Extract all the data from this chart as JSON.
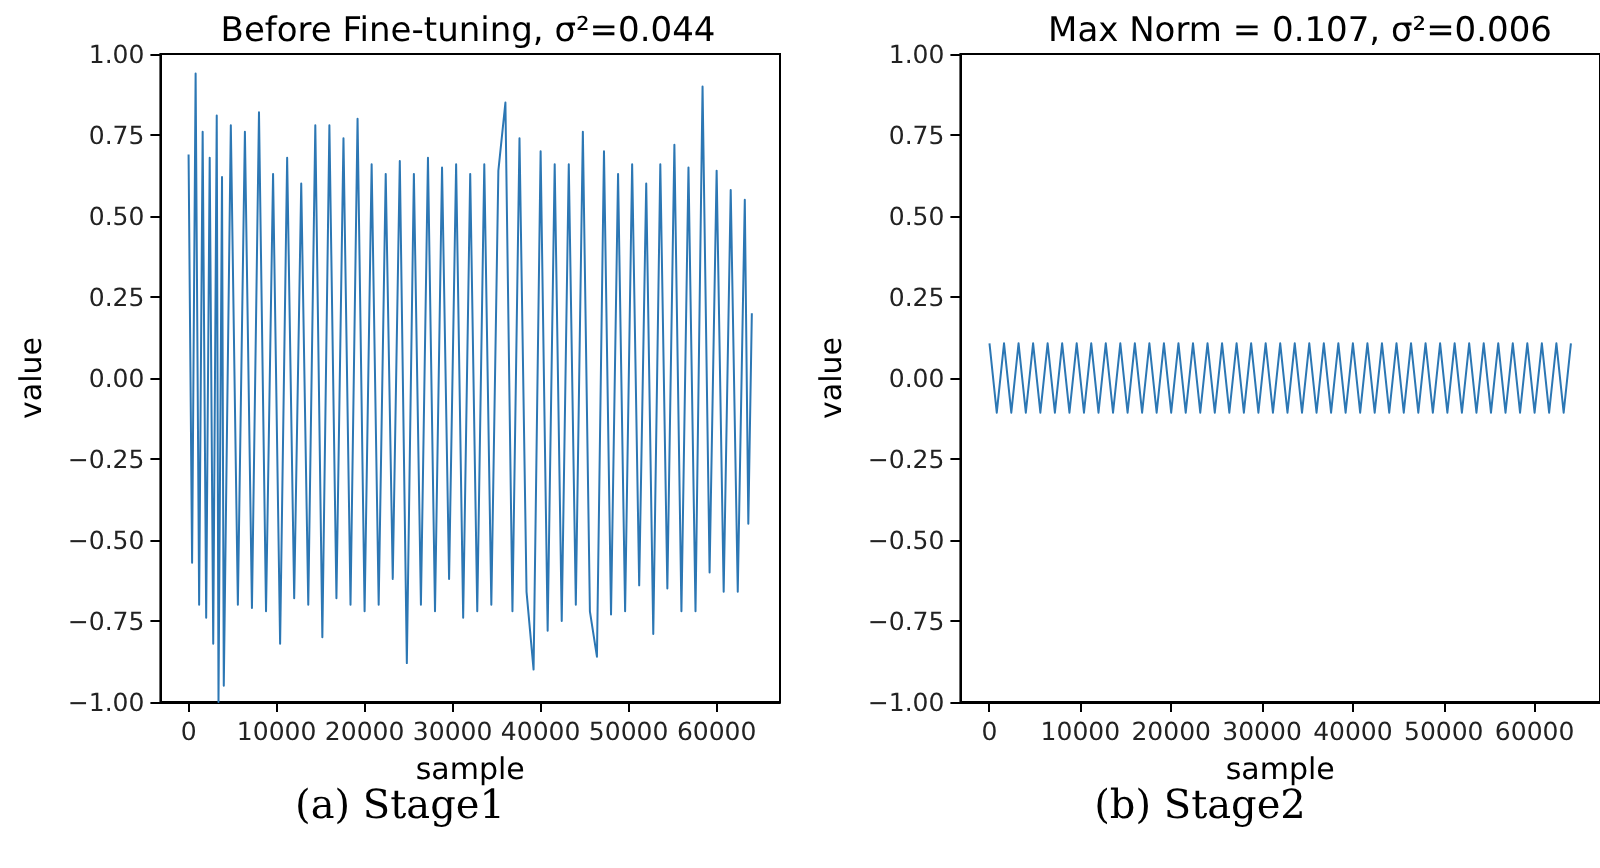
{
  "chart_data": [
    {
      "type": "line",
      "title": "Before Fine-tuning, σ²=0.044",
      "xlabel": "sample",
      "ylabel": "value",
      "annotations": [
        "(a) Stage1"
      ],
      "marker": "none",
      "line_style": "solid",
      "xlim": [
        -3200,
        67200
      ],
      "xticks": [
        0,
        10000,
        20000,
        30000,
        40000,
        50000,
        60000
      ],
      "ylim": [
        -1,
        1
      ],
      "yticks": [
        {
          "value": -1,
          "label": "−1.00"
        },
        {
          "value": -0.75,
          "label": "−0.75"
        },
        {
          "value": -0.5,
          "label": "−0.50"
        },
        {
          "value": -0.25,
          "label": "−0.25"
        },
        {
          "value": 0,
          "label": "0.00"
        },
        {
          "value": 0.25,
          "label": "0.25"
        },
        {
          "value": 0.5,
          "label": "0.50"
        },
        {
          "value": 0.75,
          "label": "0.75"
        },
        {
          "value": 1,
          "label": "1.00"
        }
      ],
      "series": [
        {
          "color": "#2c77b4",
          "x": [
            0,
            400,
            800,
            1200,
            1600,
            2000,
            2400,
            2800,
            3200,
            3400,
            3800,
            4000,
            4800,
            5600,
            6400,
            7200,
            8000,
            8800,
            9600,
            10400,
            11200,
            12000,
            12800,
            13600,
            14400,
            15200,
            16000,
            16800,
            17600,
            18400,
            19200,
            20000,
            20800,
            21600,
            22400,
            23200,
            24000,
            24800,
            25600,
            26400,
            27200,
            28000,
            28800,
            29600,
            30400,
            31200,
            32000,
            32800,
            33600,
            34400,
            35200,
            36000,
            36800,
            37600,
            38400,
            39200,
            40000,
            40800,
            41600,
            42400,
            43200,
            44000,
            44800,
            45600,
            46400,
            47200,
            48000,
            48800,
            49600,
            50400,
            51200,
            52000,
            52800,
            53600,
            54400,
            55200,
            56000,
            56800,
            57600,
            58400,
            59200,
            60000,
            60800,
            61600,
            62400,
            63200,
            63600,
            64000
          ],
          "values": [
            0.69,
            -0.57,
            0.94,
            -0.7,
            0.76,
            -0.74,
            0.68,
            -0.82,
            0.81,
            -1.0,
            0.62,
            -0.95,
            0.78,
            -0.7,
            0.76,
            -0.71,
            0.82,
            -0.72,
            0.63,
            -0.82,
            0.68,
            -0.68,
            0.6,
            -0.7,
            0.78,
            -0.8,
            0.78,
            -0.68,
            0.74,
            -0.7,
            0.8,
            -0.72,
            0.66,
            -0.7,
            0.63,
            -0.62,
            0.67,
            -0.88,
            0.63,
            -0.7,
            0.68,
            -0.72,
            0.65,
            -0.62,
            0.66,
            -0.74,
            0.63,
            -0.72,
            0.66,
            -0.7,
            0.64,
            0.85,
            -0.72,
            0.74,
            -0.66,
            -0.9,
            0.7,
            -0.78,
            0.66,
            -0.75,
            0.66,
            -0.7,
            0.76,
            -0.72,
            -0.86,
            0.7,
            -0.73,
            0.63,
            -0.72,
            0.66,
            -0.64,
            0.6,
            -0.79,
            0.66,
            -0.65,
            0.72,
            -0.72,
            0.65,
            -0.72,
            0.9,
            -0.6,
            0.64,
            -0.66,
            0.58,
            -0.66,
            0.55,
            -0.45,
            0.2
          ]
        }
      ]
    },
    {
      "type": "line",
      "title": "Max Norm = 0.107, σ²=0.006",
      "xlabel": "sample",
      "ylabel": "value",
      "annotations": [
        "(b) Stage2"
      ],
      "marker": "none",
      "line_style": "solid",
      "xlim": [
        -3200,
        67200
      ],
      "xticks": [
        0,
        10000,
        20000,
        30000,
        40000,
        50000,
        60000
      ],
      "ylim": [
        -1,
        1
      ],
      "yticks": [
        {
          "value": -1,
          "label": "−1.00"
        },
        {
          "value": -0.75,
          "label": "−0.75"
        },
        {
          "value": -0.5,
          "label": "−0.50"
        },
        {
          "value": -0.25,
          "label": "−0.25"
        },
        {
          "value": 0,
          "label": "0.00"
        },
        {
          "value": 0.25,
          "label": "0.25"
        },
        {
          "value": 0.5,
          "label": "0.50"
        },
        {
          "value": 0.75,
          "label": "0.75"
        },
        {
          "value": 1,
          "label": "1.00"
        }
      ],
      "series": [
        {
          "color": "#2c77b4",
          "x": [
            0,
            800,
            1600,
            2400,
            3200,
            4000,
            4800,
            5600,
            6400,
            7200,
            8000,
            8800,
            9600,
            10400,
            11200,
            12000,
            12800,
            13600,
            14400,
            15200,
            16000,
            16800,
            17600,
            18400,
            19200,
            20000,
            20800,
            21600,
            22400,
            23200,
            24000,
            24800,
            25600,
            26400,
            27200,
            28000,
            28800,
            29600,
            30400,
            31200,
            32000,
            32800,
            33600,
            34400,
            35200,
            36000,
            36800,
            37600,
            38400,
            39200,
            40000,
            40800,
            41600,
            42400,
            43200,
            44000,
            44800,
            45600,
            46400,
            47200,
            48000,
            48800,
            49600,
            50400,
            51200,
            52000,
            52800,
            53600,
            54400,
            55200,
            56000,
            56800,
            57600,
            58400,
            59200,
            60000,
            60800,
            61600,
            62400,
            63200,
            64000
          ],
          "values": [
            0.107,
            -0.107,
            0.107,
            -0.107,
            0.107,
            -0.107,
            0.107,
            -0.107,
            0.107,
            -0.107,
            0.107,
            -0.107,
            0.107,
            -0.107,
            0.107,
            -0.107,
            0.107,
            -0.107,
            0.107,
            -0.107,
            0.107,
            -0.107,
            0.107,
            -0.107,
            0.107,
            -0.107,
            0.107,
            -0.107,
            0.107,
            -0.107,
            0.107,
            -0.107,
            0.107,
            -0.107,
            0.107,
            -0.107,
            0.107,
            -0.107,
            0.107,
            -0.107,
            0.107,
            -0.107,
            0.107,
            -0.107,
            0.107,
            -0.107,
            0.107,
            -0.107,
            0.107,
            -0.107,
            0.107,
            -0.107,
            0.107,
            -0.107,
            0.107,
            -0.107,
            0.107,
            -0.107,
            0.107,
            -0.107,
            0.107,
            -0.107,
            0.107,
            -0.107,
            0.107,
            -0.107,
            0.107,
            -0.107,
            0.107,
            -0.107,
            0.107,
            -0.107,
            0.107,
            -0.107,
            0.107,
            -0.107,
            0.107,
            -0.107,
            0.107,
            -0.107,
            0.107
          ]
        }
      ]
    }
  ]
}
